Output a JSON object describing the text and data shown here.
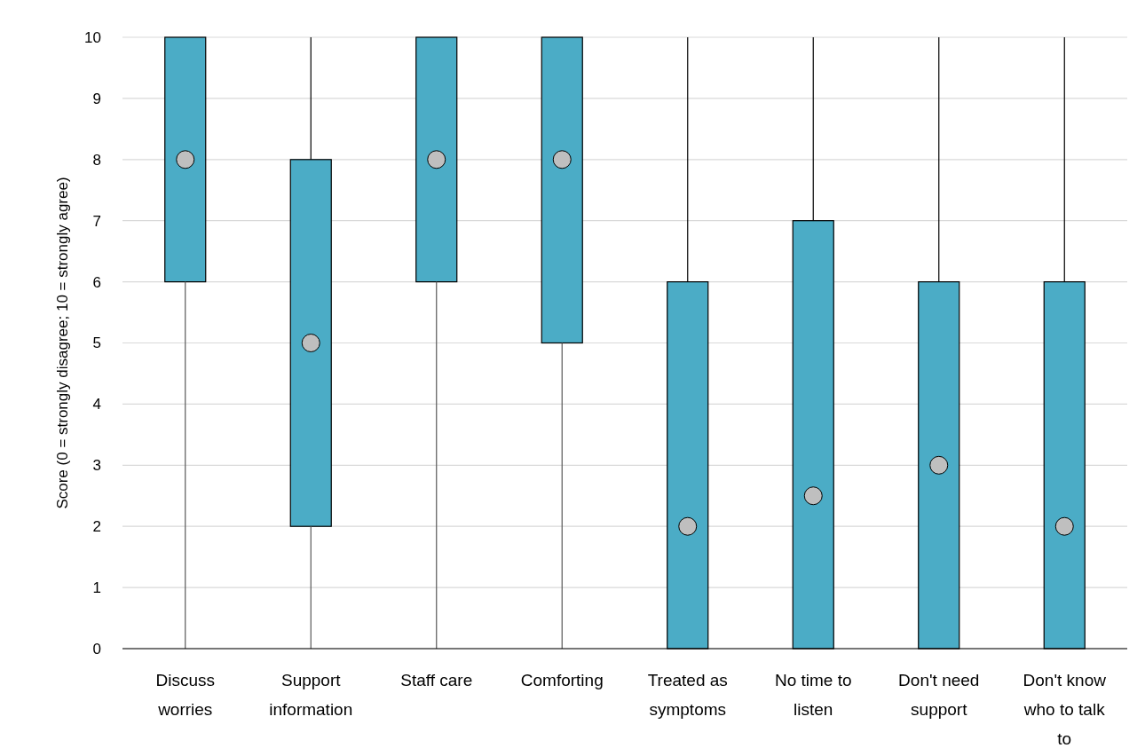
{
  "chart_data": {
    "type": "box",
    "ylabel": "Score (0 = strongly disagree; 10 = strongly agree)",
    "categories": [
      "Discuss worries",
      "Support information",
      "Staff care",
      "Comforting",
      "Treated as symptoms",
      "No time to listen",
      "Don't need support",
      "Don't know who to talk to"
    ],
    "boxes": [
      {
        "low": 0,
        "q1": 6,
        "median": 8,
        "q3": 10,
        "high": 10
      },
      {
        "low": 0,
        "q1": 2,
        "median": 5,
        "q3": 8,
        "high": 10
      },
      {
        "low": 0,
        "q1": 6,
        "median": 8,
        "q3": 10,
        "high": 10
      },
      {
        "low": 0,
        "q1": 5,
        "median": 8,
        "q3": 10,
        "high": 10
      },
      {
        "low": 0,
        "q1": 0,
        "median": 2,
        "q3": 6,
        "high": 10
      },
      {
        "low": 0,
        "q1": 0,
        "median": 2.5,
        "q3": 7,
        "high": 10
      },
      {
        "low": 0,
        "q1": 0,
        "median": 3,
        "q3": 6,
        "high": 10
      },
      {
        "low": 0,
        "q1": 0,
        "median": 2,
        "q3": 6,
        "high": 10
      }
    ],
    "color": "#4bacc6",
    "ylim": [
      0,
      10
    ],
    "yticks": [
      0,
      1,
      2,
      3,
      4,
      5,
      6,
      7,
      8,
      9,
      10
    ],
    "grid": "y",
    "marker": "circle"
  }
}
